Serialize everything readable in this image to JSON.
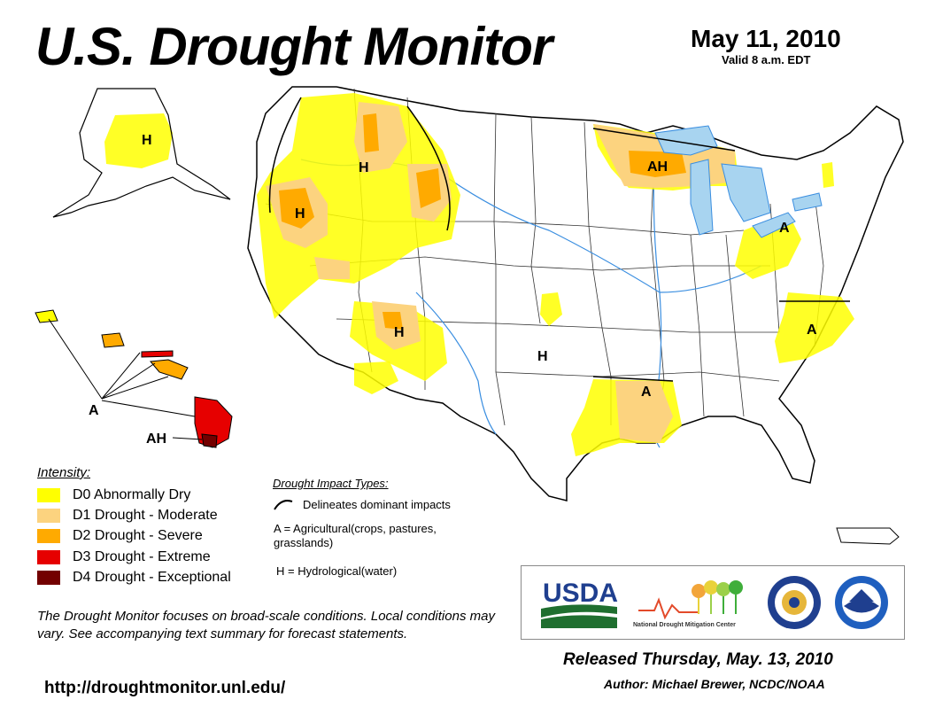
{
  "header": {
    "title": "U.S. Drought Monitor",
    "date": "May 11, 2010",
    "valid": "Valid 8 a.m. EDT"
  },
  "legend": {
    "title": "Intensity:",
    "items": [
      {
        "label": "D0 Abnormally Dry",
        "color": "#ffff00"
      },
      {
        "label": "D1 Drought - Moderate",
        "color": "#fcd37f"
      },
      {
        "label": "D2 Drought - Severe",
        "color": "#ffaa00"
      },
      {
        "label": "D3 Drought - Extreme",
        "color": "#e60000"
      },
      {
        "label": "D4 Drought - Exceptional",
        "color": "#730000"
      }
    ]
  },
  "impacts": {
    "title": "Drought Impact Types:",
    "delineates": "Delineates dominant impacts",
    "agricultural": "A = Agricultural(crops, pastures, grasslands)",
    "hydrological": "H = Hydrological(water)"
  },
  "map_labels": {
    "alaska": "H",
    "pnw": "H",
    "montana": "H",
    "utah": "H",
    "oklahoma": "H",
    "michigan": "AH",
    "pennsylvania": "A",
    "carolinas": "A",
    "louisiana": "A",
    "hawaii_a": "A",
    "hawaii_ah": "AH"
  },
  "note": "The Drought Monitor focuses on broad-scale conditions. Local conditions may vary. See accompanying text summary for forecast statements.",
  "url": "http://droughtmonitor.unl.edu/",
  "logos": {
    "usda": "USDA",
    "ndmc": "National Drought Mitigation Center"
  },
  "footer": {
    "released": "Released Thursday, May. 13, 2010",
    "author": "Author: Michael Brewer, NCDC/NOAA"
  },
  "colors": {
    "water": "#a8d4f0",
    "river": "#3a8ee0",
    "border": "#000000"
  }
}
